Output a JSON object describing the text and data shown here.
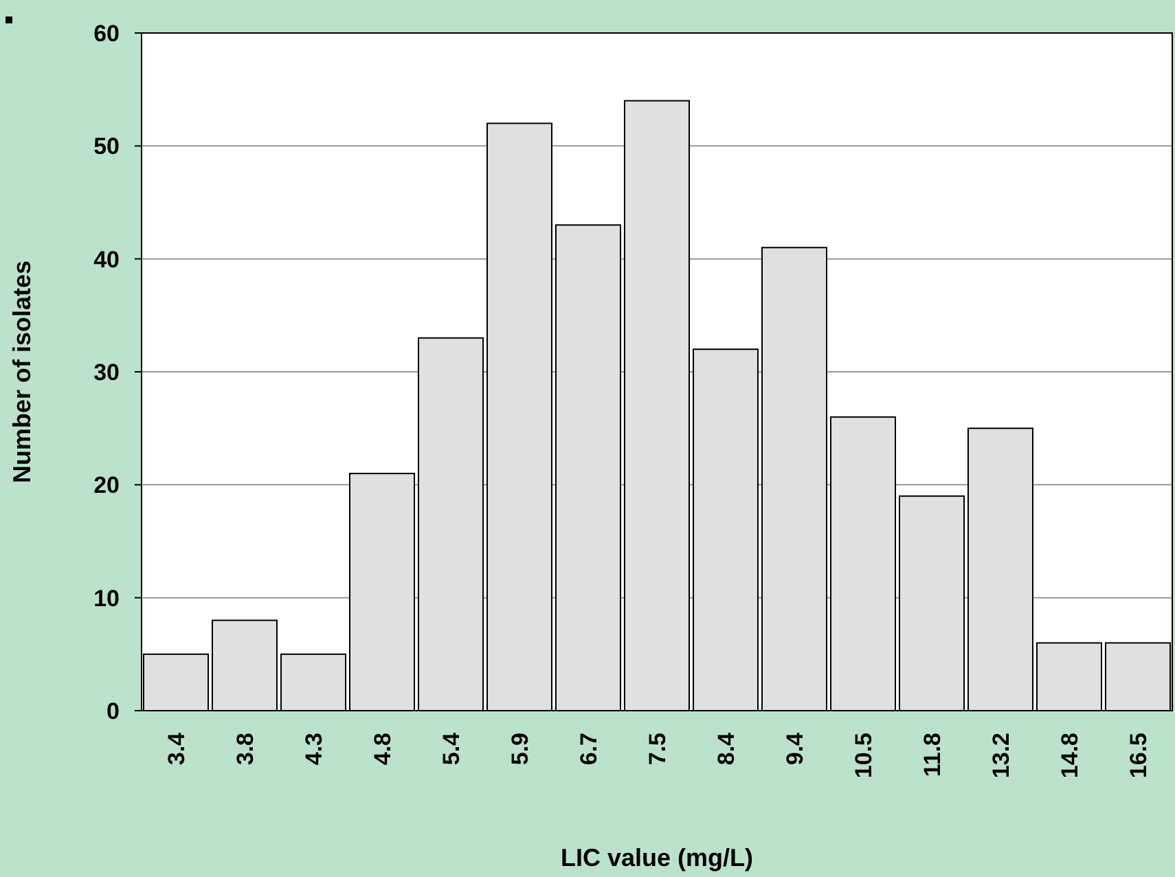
{
  "chart_data": {
    "type": "bar",
    "xlabel": "LIC value (mg/L)",
    "ylabel": "Number of isolates",
    "categories": [
      "3.4",
      "3.8",
      "4.3",
      "4.8",
      "5.4",
      "5.9",
      "6.7",
      "7.5",
      "8.4",
      "9.4",
      "10.5",
      "11.8",
      "13.2",
      "14.8",
      "16.5"
    ],
    "values": [
      5,
      8,
      5,
      21,
      33,
      52,
      43,
      54,
      32,
      41,
      26,
      19,
      25,
      6,
      6
    ],
    "color": "#e0e0e0",
    "ylim": [
      0,
      60
    ],
    "yticks": [
      0,
      10,
      20,
      30,
      40,
      50,
      60
    ],
    "grid": "y"
  }
}
